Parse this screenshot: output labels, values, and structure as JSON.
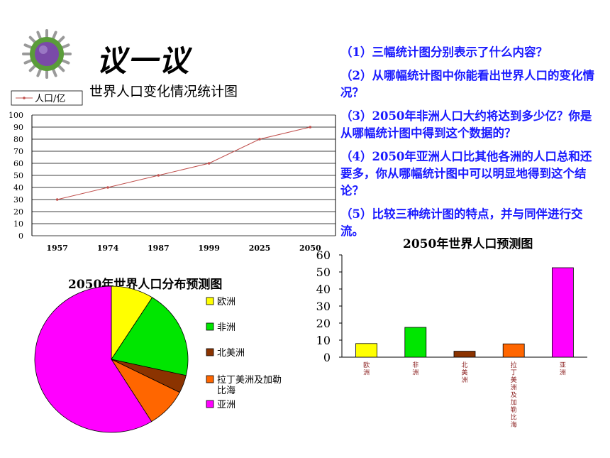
{
  "heading": "议一议",
  "questions": [
    "（1）三幅统计图分别表示了什么内容？",
    "（2）从哪幅统计图中你能看出世界人口的变化情况？",
    "（3）2050年非洲人口大约将达到多少亿？你是从哪幅统计图中得到这个数据的？",
    "（4）2050年亚洲人口比其他各洲的人口总和还要多，你从哪幅统计图中可以明显地得到这个结论？",
    "（5）比较三种统计图的特点，并与同伴进行交流。"
  ],
  "chart_data": [
    {
      "type": "line",
      "title": "世界人口变化情况统计图",
      "legend": "人口/亿",
      "legend_position": "top-left",
      "categories": [
        "1957",
        "1974",
        "1987",
        "1999",
        "2025",
        "2050"
      ],
      "series": [
        {
          "name": "人口/亿",
          "values": [
            30,
            40,
            50,
            60,
            80,
            90
          ]
        }
      ],
      "ylim": [
        0,
        100
      ],
      "yticks": [
        "0",
        "10",
        "20",
        "30",
        "40",
        "50",
        "60",
        "70",
        "80",
        "90",
        "100"
      ],
      "grid": true,
      "color": "#c0504d"
    },
    {
      "type": "bar",
      "title": "2050年世界人口预测图",
      "categories": [
        "欧洲",
        "非洲",
        "北美洲",
        "拉丁美洲及加勒比海",
        "亚洲"
      ],
      "values": [
        8,
        17.5,
        3.5,
        7.8,
        52.5
      ],
      "colors": [
        "#ffff00",
        "#00e600",
        "#8b3300",
        "#ff6600",
        "#ff00ff"
      ],
      "ylim": [
        0,
        60
      ],
      "yticks": [
        "0",
        "10",
        "20",
        "30",
        "40",
        "50",
        "60"
      ],
      "grid": false
    },
    {
      "type": "pie",
      "title": "2050年世界人口分布预测图",
      "categories": [
        "欧洲",
        "非洲",
        "北美洲",
        "拉丁美洲及加勒比海",
        "亚洲"
      ],
      "values": [
        8,
        17.5,
        3.5,
        7.8,
        52.5
      ],
      "colors": [
        "#ffff00",
        "#00e600",
        "#8b3300",
        "#ff6600",
        "#ff00ff"
      ],
      "legend_position": "right"
    }
  ]
}
